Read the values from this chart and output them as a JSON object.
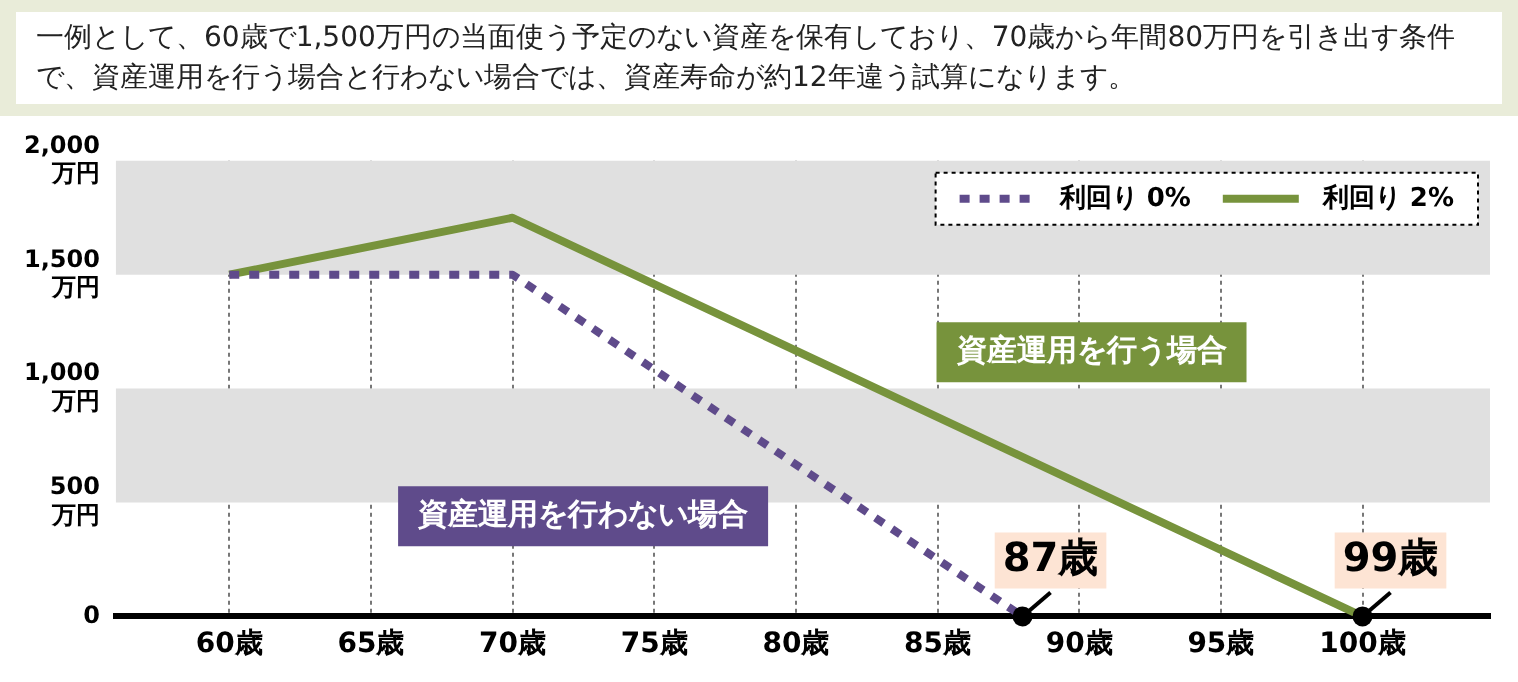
{
  "chart_data": {
    "type": "line",
    "title": "一例として、60歳で1,500万円の当面使う予定のない資産を保有しており、70歳から年間80万円を引き出す条件で、資産運用を行う場合と行わない場合では、資産寿命が約12年違う試算になります。",
    "series": [
      {
        "name": "利回り 0%",
        "color": "#5f4b8b",
        "line_style": "dotted",
        "x": [
          60,
          70,
          88
        ],
        "values": [
          1500,
          1500,
          0
        ]
      },
      {
        "name": "利回り 2%",
        "color": "#77933c",
        "line_style": "solid",
        "x": [
          60,
          70,
          100
        ],
        "values": [
          1500,
          1750,
          0
        ]
      }
    ],
    "xlim": [
      56,
      104.5
    ],
    "xticks": [
      {
        "value": 60,
        "label": "60歳"
      },
      {
        "value": 65,
        "label": "65歳"
      },
      {
        "value": 70,
        "label": "70歳"
      },
      {
        "value": 75,
        "label": "75歳"
      },
      {
        "value": 80,
        "label": "80歳"
      },
      {
        "value": 85,
        "label": "85歳"
      },
      {
        "value": 90,
        "label": "90歳"
      },
      {
        "value": 95,
        "label": "95歳"
      },
      {
        "value": 100,
        "label": "100歳"
      }
    ],
    "ylim": [
      0,
      2000
    ],
    "yticks": [
      0,
      {
        "value": 500,
        "label": "500 万円"
      },
      {
        "value": 1000,
        "label": "1,000 万円"
      },
      {
        "value": 1500,
        "label": "1,500 万円"
      },
      {
        "value": 2000,
        "label": "2,000 万円"
      }
    ],
    "bands": [
      {
        "axis": "y",
        "from": 500,
        "to": 1000,
        "color": "#e0e0e0"
      },
      {
        "axis": "y",
        "from": 1500,
        "to": 2000,
        "color": "#e0e0e0"
      }
    ],
    "annotations": [
      "資産運用を行う場合",
      "資産運用を行わない場合",
      {
        "text": "87歳",
        "x": 88,
        "y": 0
      },
      {
        "text": "99歳",
        "x": 100,
        "y": 0
      }
    ],
    "grid": "x",
    "legend": "top right",
    "marker": "none"
  }
}
